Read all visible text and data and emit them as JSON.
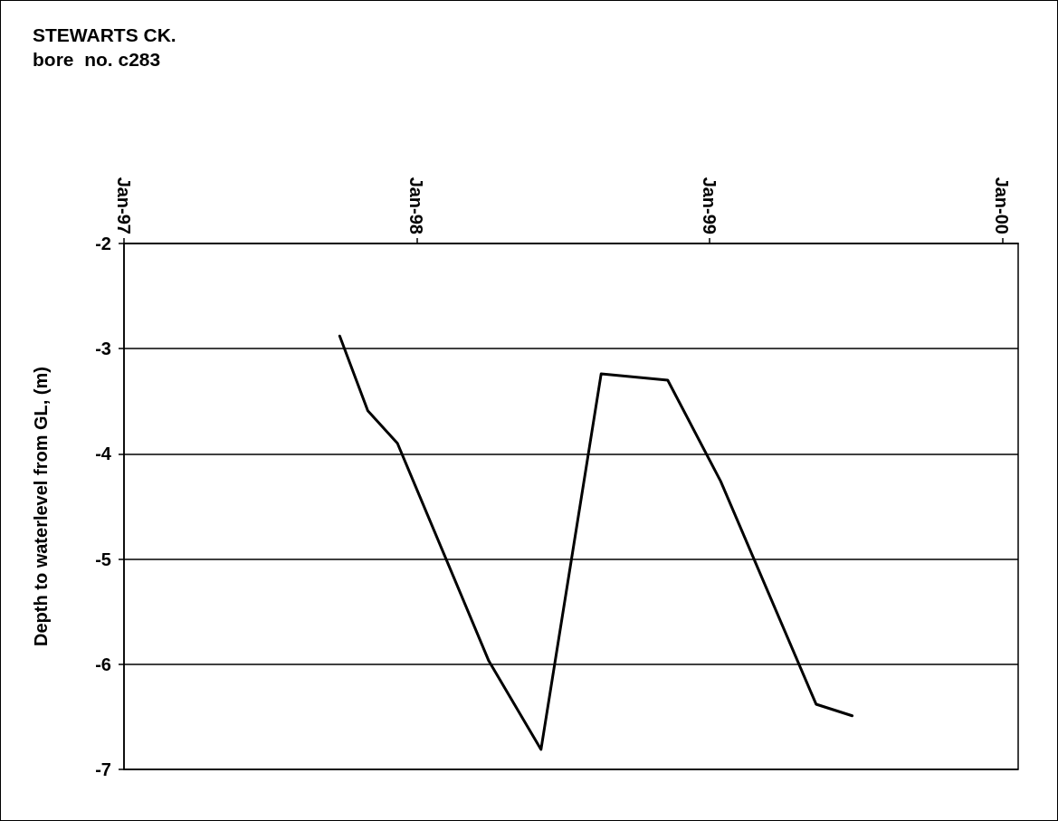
{
  "chart_data": {
    "type": "line",
    "title": "STEWARTS CK.",
    "subtitle": "bore  no. c283",
    "ylabel": "Depth to waterlevel from GL, (m)",
    "x": [
      "1997-09-27",
      "1997-11-01",
      "1997-12-08",
      "1998-04-01",
      "1998-06-05",
      "1998-08-19",
      "1998-11-10",
      "1999-01-15",
      "1999-05-14",
      "1999-06-28"
    ],
    "series": [
      {
        "color": "#000000",
        "values": [
          -2.88,
          -3.59,
          -3.9,
          -5.97,
          -6.81,
          -3.24,
          -3.3,
          -4.26,
          -6.38,
          -6.49
        ]
      }
    ],
    "xlim": [
      "1997-01-01",
      "2000-01-21"
    ],
    "xticks": [
      {
        "value": "1997-01-01",
        "label": "Jan-97"
      },
      {
        "value": "1998-01-01",
        "label": "Jan-98"
      },
      {
        "value": "1999-01-01",
        "label": "Jan-99"
      },
      {
        "value": "2000-01-01",
        "label": "Jan-00"
      }
    ],
    "ylim": [
      -7,
      -2
    ],
    "yticks": [
      -2,
      -3,
      -4,
      -5,
      -6,
      -7
    ],
    "grid": "y",
    "marker": "none",
    "line_style": "solid"
  }
}
